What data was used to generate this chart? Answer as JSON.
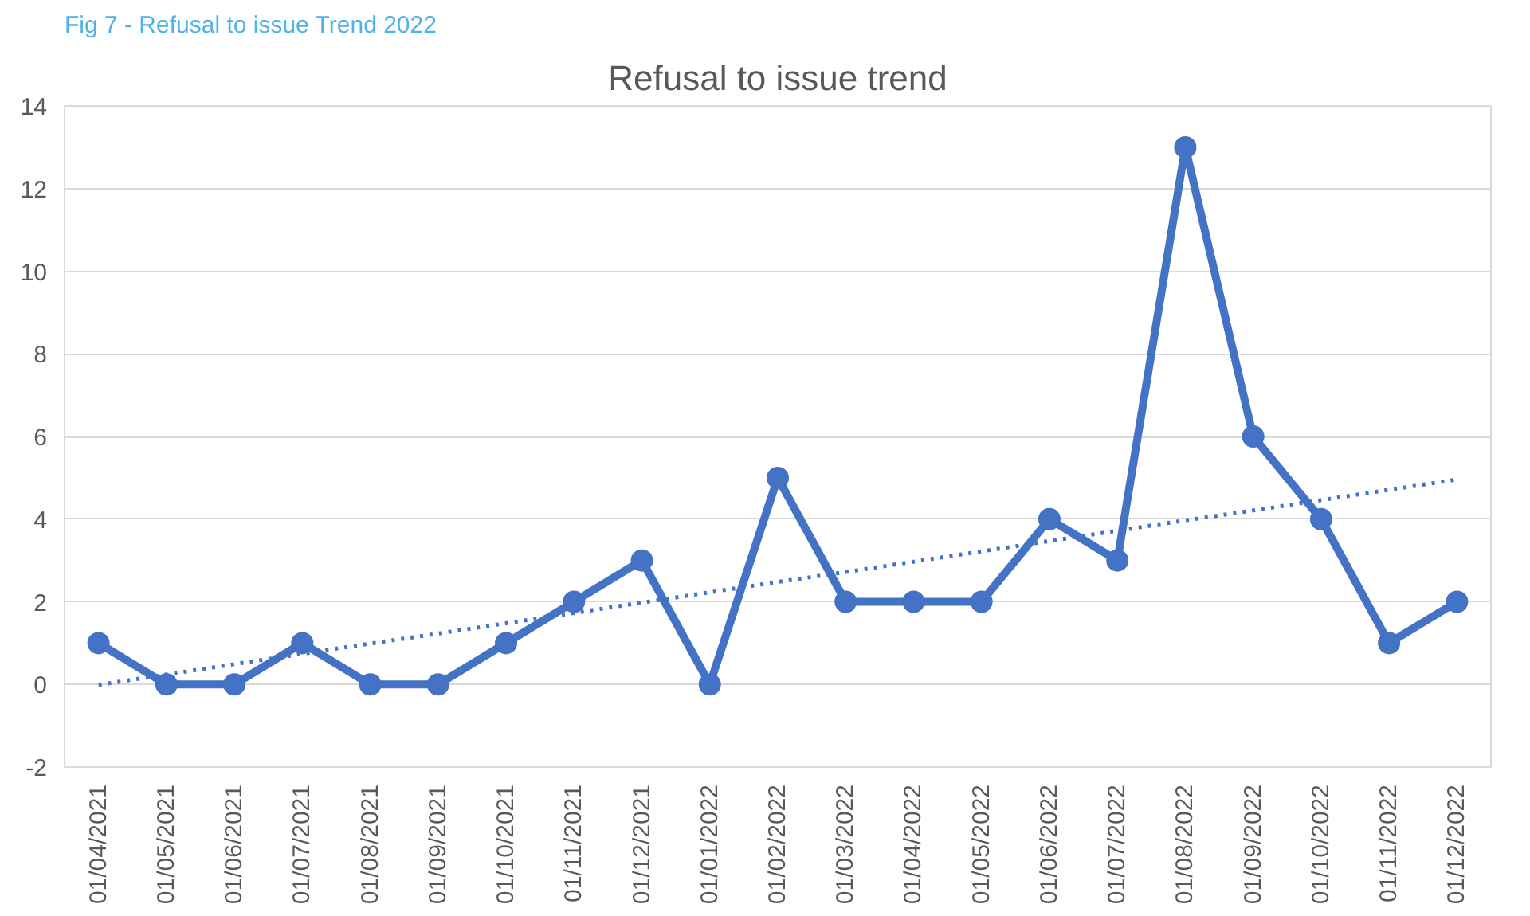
{
  "chart_data": {
    "type": "line",
    "title": "Refusal to issue trend",
    "annotations": [
      "Fig 7 - Refusal to issue Trend 2022"
    ],
    "categories": [
      "01/04/2021",
      "01/05/2021",
      "01/06/2021",
      "01/07/2021",
      "01/08/2021",
      "01/09/2021",
      "01/10/2021",
      "01/11/2021",
      "01/12/2021",
      "01/01/2022",
      "01/02/2022",
      "01/03/2022",
      "01/04/2022",
      "01/05/2022",
      "01/06/2022",
      "01/07/2022",
      "01/08/2022",
      "01/09/2022",
      "01/10/2022",
      "01/11/2022",
      "01/12/2022"
    ],
    "series": [
      {
        "color": "#4472c4",
        "marker": "circle",
        "line_style": "solid",
        "values": [
          1,
          0,
          0,
          1,
          0,
          0,
          1,
          2,
          3,
          0,
          5,
          2,
          2,
          2,
          4,
          3,
          13,
          6,
          4,
          1,
          2
        ]
      },
      {
        "color": "#4472c4",
        "marker": "none",
        "line_style": "dotted",
        "values": [
          -0.01,
          0.24,
          0.49,
          0.74,
          0.99,
          1.23,
          1.48,
          1.73,
          1.98,
          2.23,
          2.48,
          2.72,
          2.97,
          3.22,
          3.47,
          3.72,
          3.97,
          4.21,
          4.46,
          4.71,
          4.96
        ]
      }
    ],
    "ylim": [
      -2,
      14
    ],
    "yticks": [
      -2,
      0,
      2,
      4,
      6,
      8,
      10,
      12,
      14
    ],
    "grid": "y"
  }
}
